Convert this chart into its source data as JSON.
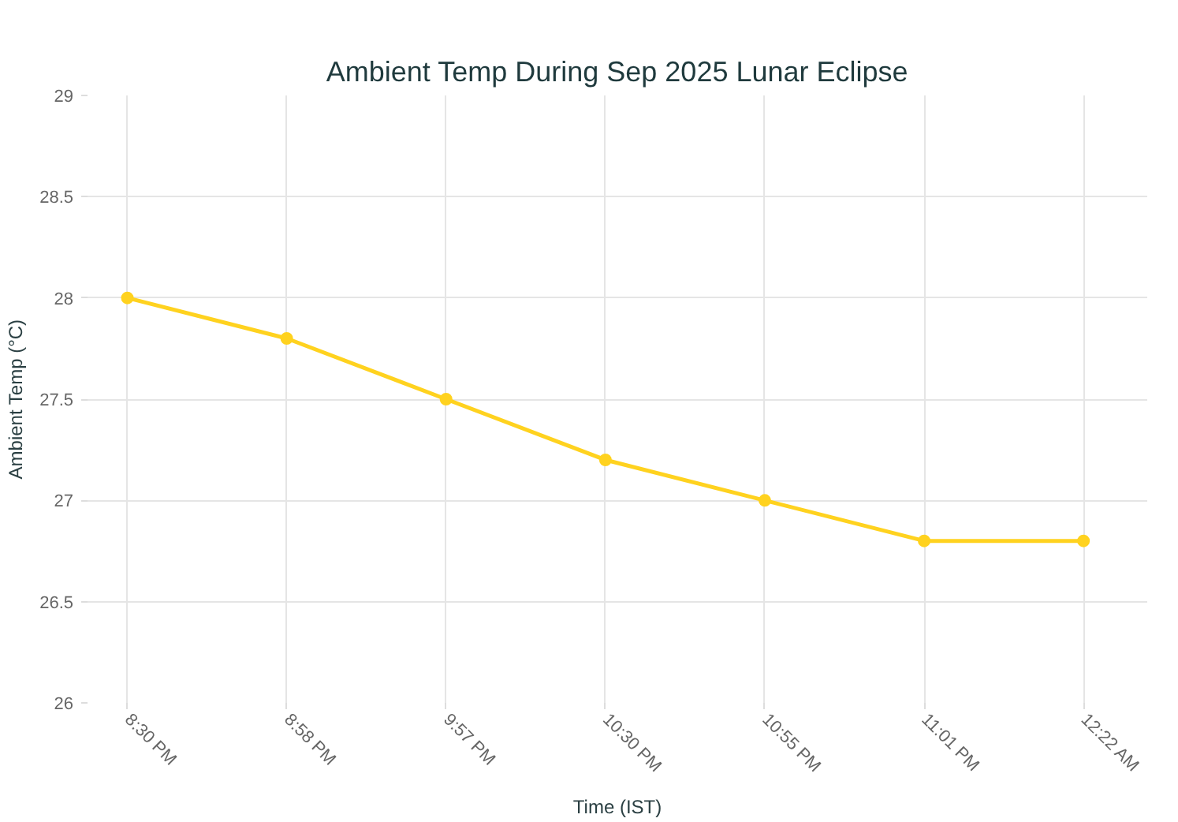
{
  "chart_data": {
    "type": "line",
    "title": "Ambient Temp During Sep 2025 Lunar Eclipse",
    "xlabel": "Time (IST)",
    "ylabel": "Ambient Temp (°C)",
    "categories": [
      "8:30 PM",
      "8:58 PM",
      "9:57 PM",
      "10:30 PM",
      "10:55 PM",
      "11:01 PM",
      "12:22 AM"
    ],
    "series": [
      {
        "color": "#ffd21f",
        "values": [
          28,
          27.8,
          27.5,
          27.2,
          27.0,
          26.8,
          26.8
        ]
      }
    ],
    "ylim": [
      26,
      29
    ],
    "yticks": [
      26,
      26.5,
      27,
      27.5,
      28,
      28.5,
      29
    ],
    "grid": true,
    "marker": "circle",
    "line_style": "solid"
  }
}
